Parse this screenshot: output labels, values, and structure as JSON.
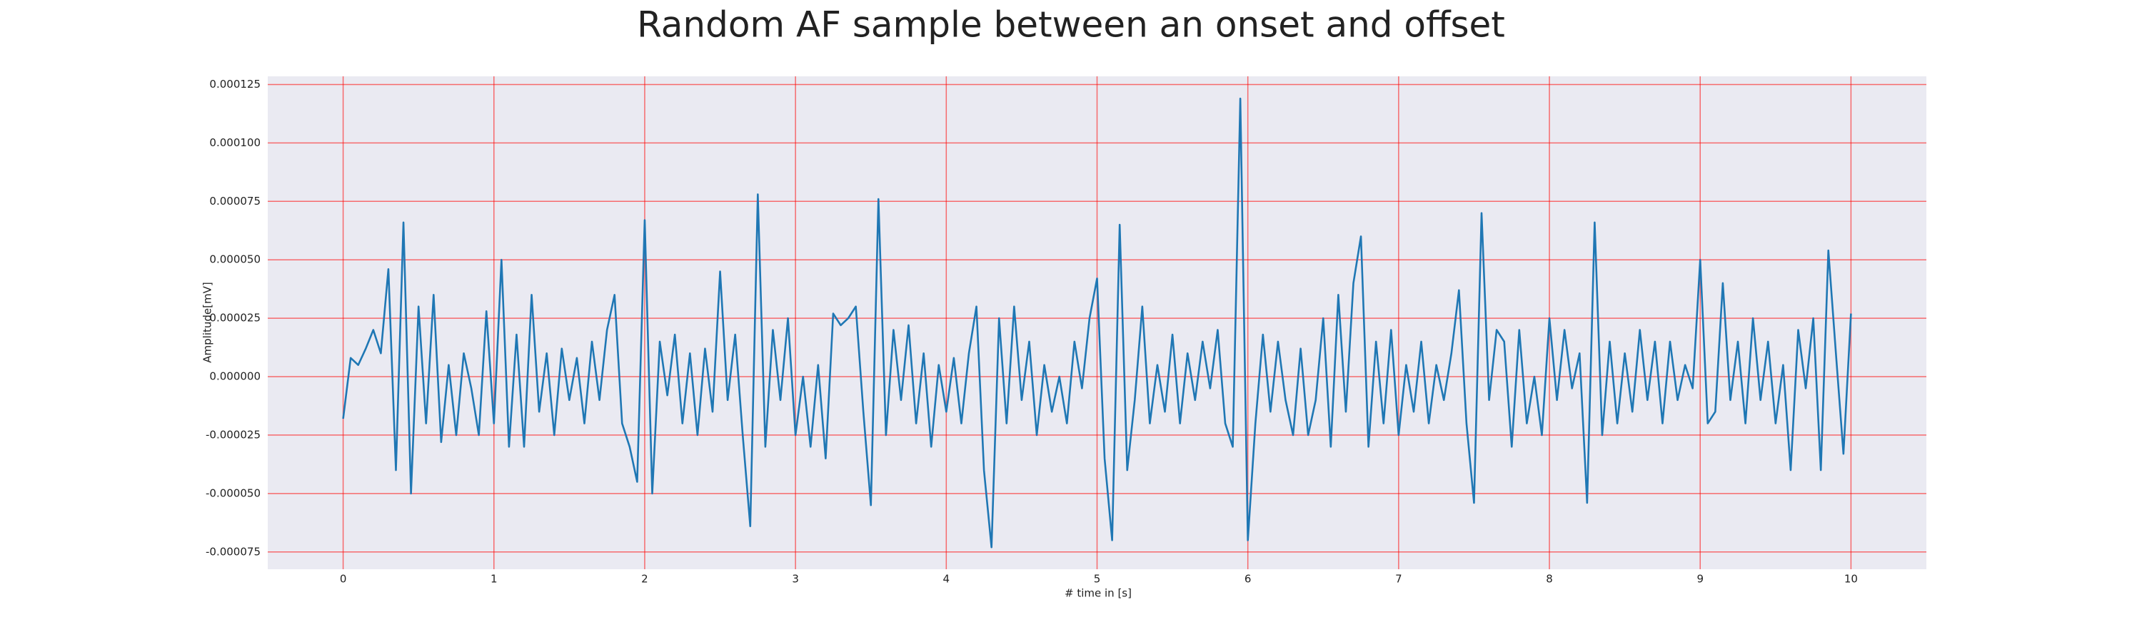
{
  "chart_data": {
    "type": "line",
    "title": "Random AF sample between an onset and offset",
    "xlabel": "# time in [s]",
    "ylabel": "Amplitude[mV]",
    "grid": true,
    "grid_color": "#ff0000",
    "background": "#eaeaf2",
    "xlim": [
      -0.5,
      10.5
    ],
    "ylim": [
      -8.24e-05,
      0.0001285
    ],
    "xticks": [
      0,
      1,
      2,
      3,
      4,
      5,
      6,
      7,
      8,
      9,
      10
    ],
    "yticks": [
      {
        "value": -7.5e-05,
        "label": "-0.000075"
      },
      {
        "value": -5e-05,
        "label": "-0.000050"
      },
      {
        "value": -2.5e-05,
        "label": "-0.000025"
      },
      {
        "value": 0,
        "label": "0.000000"
      },
      {
        "value": 2.5e-05,
        "label": "0.000025"
      },
      {
        "value": 5e-05,
        "label": "0.000050"
      },
      {
        "value": 7.5e-05,
        "label": "0.000075"
      },
      {
        "value": 0.0001,
        "label": "0.000100"
      },
      {
        "value": 0.000125,
        "label": "0.000125"
      }
    ],
    "x": [
      0,
      0.05,
      0.1,
      0.15,
      0.2,
      0.25,
      0.3,
      0.35,
      0.4,
      0.45,
      0.5,
      0.55,
      0.6,
      0.65,
      0.7,
      0.75,
      0.8,
      0.85,
      0.9,
      0.95,
      1,
      1.05,
      1.1,
      1.15,
      1.2,
      1.25,
      1.3,
      1.35,
      1.4,
      1.45,
      1.5,
      1.55,
      1.6,
      1.65,
      1.7,
      1.75,
      1.8,
      1.85,
      1.9,
      1.95,
      2,
      2.05,
      2.1,
      2.15,
      2.2,
      2.25,
      2.3,
      2.35,
      2.4,
      2.45,
      2.5,
      2.55,
      2.6,
      2.65,
      2.7,
      2.75,
      2.8,
      2.85,
      2.9,
      2.95,
      3,
      3.05,
      3.1,
      3.15,
      3.2,
      3.25,
      3.3,
      3.35,
      3.4,
      3.45,
      3.5,
      3.55,
      3.6,
      3.65,
      3.7,
      3.75,
      3.8,
      3.85,
      3.9,
      3.95,
      4,
      4.05,
      4.1,
      4.15,
      4.2,
      4.25,
      4.3,
      4.35,
      4.4,
      4.45,
      4.5,
      4.55,
      4.6,
      4.65,
      4.7,
      4.75,
      4.8,
      4.85,
      4.9,
      4.95,
      5,
      5.05,
      5.1,
      5.15,
      5.2,
      5.25,
      5.3,
      5.35,
      5.4,
      5.45,
      5.5,
      5.55,
      5.6,
      5.65,
      5.7,
      5.75,
      5.8,
      5.85,
      5.9,
      5.95,
      6,
      6.05,
      6.1,
      6.15,
      6.2,
      6.25,
      6.3,
      6.35,
      6.4,
      6.45,
      6.5,
      6.55,
      6.6,
      6.65,
      6.7,
      6.75,
      6.8,
      6.85,
      6.9,
      6.95,
      7,
      7.05,
      7.1,
      7.15,
      7.2,
      7.25,
      7.3,
      7.35,
      7.4,
      7.45,
      7.5,
      7.55,
      7.6,
      7.65,
      7.7,
      7.75,
      7.8,
      7.85,
      7.9,
      7.95,
      8,
      8.05,
      8.1,
      8.15,
      8.2,
      8.25,
      8.3,
      8.35,
      8.4,
      8.45,
      8.5,
      8.55,
      8.6,
      8.65,
      8.7,
      8.75,
      8.8,
      8.85,
      8.9,
      8.95,
      9,
      9.05,
      9.1,
      9.15,
      9.2,
      9.25,
      9.3,
      9.35,
      9.4,
      9.45,
      9.5,
      9.55,
      9.6,
      9.65,
      9.7,
      9.75,
      9.8,
      9.85,
      9.9,
      9.95,
      10
    ],
    "series": [
      {
        "color": "#1f77b4",
        "values": [
          -1.8e-05,
          8e-06,
          5e-06,
          1.2e-05,
          2e-05,
          1e-05,
          4.6e-05,
          -4e-05,
          6.6e-05,
          -5e-05,
          3e-05,
          -2e-05,
          3.5e-05,
          -2.8e-05,
          5e-06,
          -2.5e-05,
          1e-05,
          -5e-06,
          -2.5e-05,
          2.8e-05,
          -2e-05,
          5e-05,
          -3e-05,
          1.8e-05,
          -3e-05,
          3.5e-05,
          -1.5e-05,
          1e-05,
          -2.5e-05,
          1.2e-05,
          -1e-05,
          8e-06,
          -2e-05,
          1.5e-05,
          -1e-05,
          2e-05,
          3.5e-05,
          -2e-05,
          -3e-05,
          -4.5e-05,
          6.7e-05,
          -5e-05,
          1.5e-05,
          -8e-06,
          1.8e-05,
          -2e-05,
          1e-05,
          -2.5e-05,
          1.2e-05,
          -1.5e-05,
          4.5e-05,
          -1e-05,
          1.8e-05,
          -2.5e-05,
          -6.4e-05,
          7.8e-05,
          -3e-05,
          2e-05,
          -1e-05,
          2.5e-05,
          -2.5e-05,
          0,
          -3e-05,
          5e-06,
          -3.5e-05,
          2.7e-05,
          2.2e-05,
          2.5e-05,
          3e-05,
          -1.5e-05,
          -5.5e-05,
          7.6e-05,
          -2.5e-05,
          2e-05,
          -1e-05,
          2.2e-05,
          -2e-05,
          1e-05,
          -3e-05,
          5e-06,
          -1.5e-05,
          8e-06,
          -2e-05,
          1e-05,
          3e-05,
          -4e-05,
          -7.3e-05,
          2.5e-05,
          -2e-05,
          3e-05,
          -1e-05,
          1.5e-05,
          -2.5e-05,
          5e-06,
          -1.5e-05,
          0,
          -2e-05,
          1.5e-05,
          -5e-06,
          2.5e-05,
          4.2e-05,
          -3.5e-05,
          -7e-05,
          6.5e-05,
          -4e-05,
          -1e-05,
          3e-05,
          -2e-05,
          5e-06,
          -1.5e-05,
          1.8e-05,
          -2e-05,
          1e-05,
          -1e-05,
          1.5e-05,
          -5e-06,
          2e-05,
          -2e-05,
          -3e-05,
          0.000119,
          -7e-05,
          -2e-05,
          1.8e-05,
          -1.5e-05,
          1.5e-05,
          -1e-05,
          -2.5e-05,
          1.2e-05,
          -2.5e-05,
          -1e-05,
          2.5e-05,
          -3e-05,
          3.5e-05,
          -1.5e-05,
          4e-05,
          6e-05,
          -3e-05,
          1.5e-05,
          -2e-05,
          2e-05,
          -2.5e-05,
          5e-06,
          -1.5e-05,
          1.5e-05,
          -2e-05,
          5e-06,
          -1e-05,
          1e-05,
          3.7e-05,
          -2e-05,
          -5.4e-05,
          7e-05,
          -1e-05,
          2e-05,
          1.5e-05,
          -3e-05,
          2e-05,
          -2e-05,
          0,
          -2.5e-05,
          2.5e-05,
          -1e-05,
          2e-05,
          -5e-06,
          1e-05,
          -5.4e-05,
          6.6e-05,
          -2.5e-05,
          1.5e-05,
          -2e-05,
          1e-05,
          -1.5e-05,
          2e-05,
          -1e-05,
          1.5e-05,
          -2e-05,
          1.5e-05,
          -1e-05,
          5e-06,
          -5e-06,
          5e-05,
          -2e-05,
          -1.5e-05,
          4e-05,
          -1e-05,
          1.5e-05,
          -2e-05,
          2.5e-05,
          -1e-05,
          1.5e-05,
          -2e-05,
          5e-06,
          -4e-05,
          2e-05,
          -5e-06,
          2.5e-05,
          -4e-05,
          5.4e-05,
          1e-05,
          -3.3e-05,
          2.7e-05
        ]
      }
    ]
  }
}
